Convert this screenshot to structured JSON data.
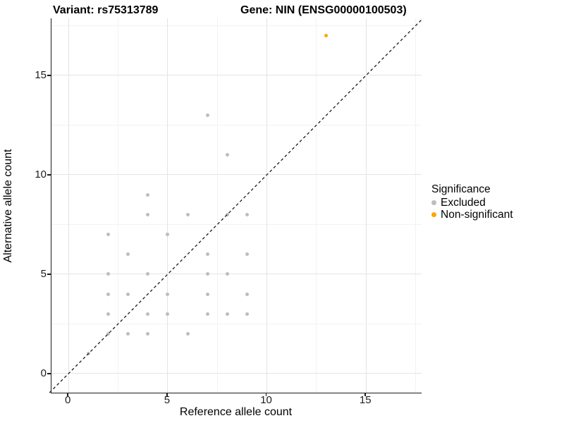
{
  "header": {
    "variant_title": "Variant: rs75313789",
    "gene_title": "Gene: NIN (ENSG00000100503)"
  },
  "chart_data": {
    "type": "scatter",
    "title": "Variant: rs75313789  |  Gene: NIN (ENSG00000100503)",
    "xlabel": "Reference allele count",
    "ylabel": "Alternative allele count",
    "xlim": [
      -0.86,
      17.8
    ],
    "ylim": [
      -0.96,
      17.87
    ],
    "x_ticks": [
      0,
      5,
      10,
      15
    ],
    "x_tick_labels": [
      "0",
      "5",
      "10",
      "15"
    ],
    "y_ticks": [
      0,
      5,
      10,
      15
    ],
    "y_tick_labels": [
      "0",
      "5",
      "10",
      "15"
    ],
    "x_minor_ticks": [
      2.5,
      7.5,
      12.5,
      17.5
    ],
    "y_minor_ticks": [
      2.5,
      7.5,
      12.5,
      17.5
    ],
    "grid": true,
    "identity_line": {
      "type": "y=x",
      "style": "dashed",
      "color": "#1a1a1a",
      "from": -0.96,
      "to": 17.87
    },
    "legend": {
      "title": "Significance",
      "position": "right"
    },
    "series": [
      {
        "name": "Excluded",
        "color": "#bdbdbd",
        "point_size": 5,
        "points": [
          [
            1,
            1
          ],
          [
            2,
            2
          ],
          [
            2,
            3
          ],
          [
            2,
            4
          ],
          [
            2,
            5
          ],
          [
            2,
            7
          ],
          [
            3,
            2
          ],
          [
            3,
            4
          ],
          [
            3,
            6
          ],
          [
            4,
            2
          ],
          [
            4,
            3
          ],
          [
            4,
            5
          ],
          [
            4,
            8
          ],
          [
            4,
            9
          ],
          [
            5,
            3
          ],
          [
            5,
            4
          ],
          [
            5,
            7
          ],
          [
            6,
            2
          ],
          [
            6,
            8
          ],
          [
            7,
            3
          ],
          [
            7,
            4
          ],
          [
            7,
            5
          ],
          [
            7,
            6
          ],
          [
            7,
            13
          ],
          [
            8,
            3
          ],
          [
            8,
            5
          ],
          [
            8,
            8
          ],
          [
            8,
            11
          ],
          [
            9,
            3
          ],
          [
            9,
            4
          ],
          [
            9,
            6
          ],
          [
            9,
            8
          ]
        ]
      },
      {
        "name": "Non-significant",
        "color": "#ffa500",
        "point_size": 5,
        "points": [
          [
            13,
            17
          ]
        ]
      }
    ]
  }
}
